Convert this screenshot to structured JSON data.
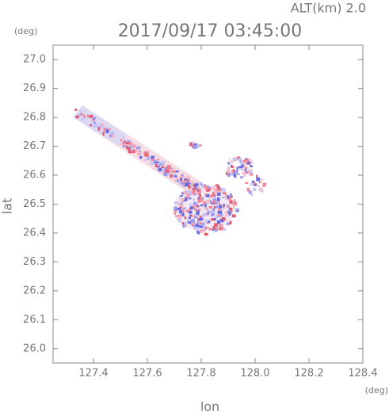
{
  "chart_data": {
    "type": "field",
    "title": "2017/09/17 03:45:00",
    "altitude_label": "ALT(km) 2.0",
    "x_label": "lon",
    "y_label": "lat",
    "x_unit": "(deg)",
    "y_unit": "(deg)",
    "xlim": [
      127.25,
      128.4
    ],
    "xticks": [
      127.4,
      127.6,
      127.8,
      {
        "value": 128,
        "label": "128.0"
      },
      128.2,
      128.4
    ],
    "ylim": [
      25.95,
      27.05
    ],
    "yticks": [
      {
        "value": 26,
        "label": "26.0"
      },
      26.1,
      26.2,
      26.3,
      26.4,
      26.5,
      26.6,
      26.7,
      26.8,
      26.9,
      {
        "value": 27,
        "label": "27.0"
      }
    ]
  }
}
